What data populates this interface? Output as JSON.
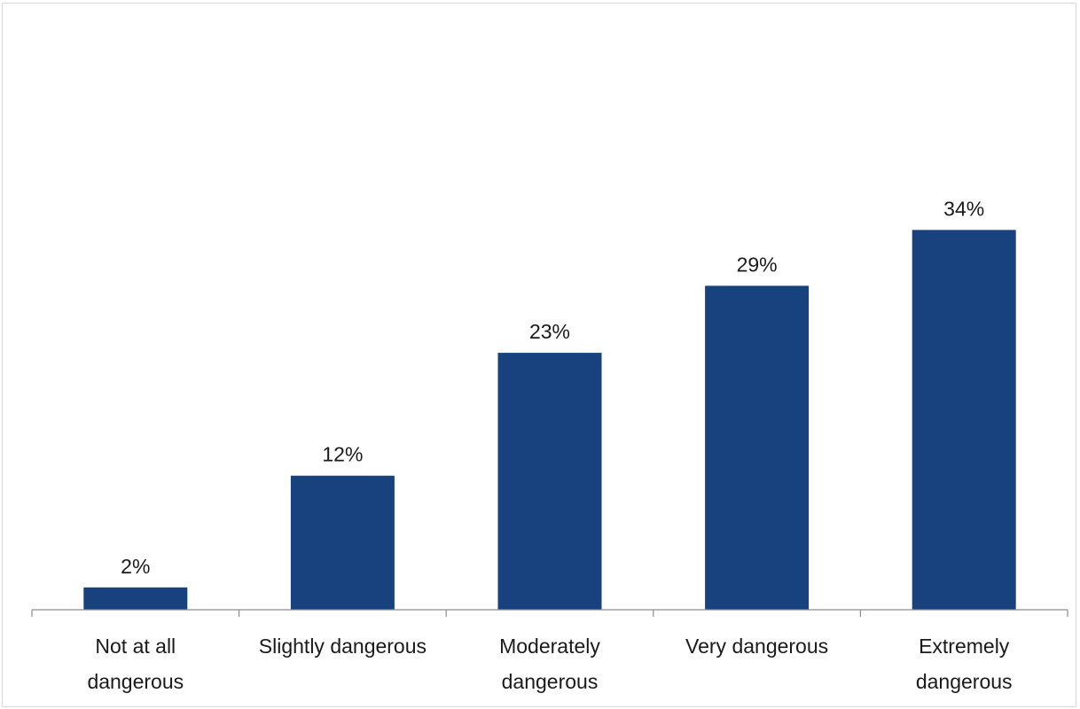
{
  "chart_data": {
    "type": "bar",
    "title": "",
    "xlabel": "",
    "ylabel": "",
    "categories": [
      [
        "Not at all",
        "dangerous"
      ],
      [
        "Slightly dangerous"
      ],
      [
        "Moderately",
        "dangerous"
      ],
      [
        "Very dangerous"
      ],
      [
        "Extremely",
        "dangerous"
      ]
    ],
    "values": [
      2,
      12,
      23,
      29,
      34
    ],
    "value_labels": [
      "2%",
      "12%",
      "23%",
      "29%",
      "34%"
    ],
    "ylim": [
      0,
      43
    ],
    "grid": false,
    "legend": "none",
    "bar_color": "#17427d",
    "axis_color": "#8c8c8c"
  }
}
